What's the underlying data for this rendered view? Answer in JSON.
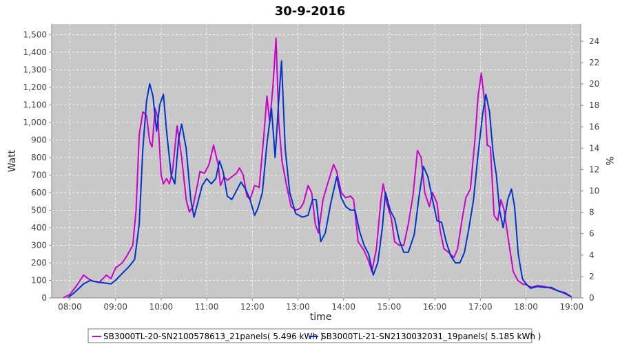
{
  "colors": {
    "plot_bg": "#c8c8c8",
    "grid": "#ffffff",
    "series1": "#cc00cc",
    "series2": "#0033cc"
  },
  "chart_data": {
    "type": "line",
    "title": "30-9-2016",
    "xlabel": "time",
    "ylabel": "Watt",
    "y2label": "%",
    "xlim": [
      7.6,
      19.2
    ],
    "ylim": [
      0,
      1560
    ],
    "y2lim": [
      0,
      25.6
    ],
    "xticks": [
      {
        "value": 8,
        "label": "08:00"
      },
      {
        "value": 9,
        "label": "09:00"
      },
      {
        "value": 10,
        "label": "10:00"
      },
      {
        "value": 11,
        "label": "11:00"
      },
      {
        "value": 12,
        "label": "12:00"
      },
      {
        "value": 13,
        "label": "13:00"
      },
      {
        "value": 14,
        "label": "14:00"
      },
      {
        "value": 15,
        "label": "15:00"
      },
      {
        "value": 16,
        "label": "16:00"
      },
      {
        "value": 17,
        "label": "17:00"
      },
      {
        "value": 18,
        "label": "18:00"
      },
      {
        "value": 19,
        "label": "19:00"
      }
    ],
    "yticks": [
      {
        "value": 0,
        "label": "0"
      },
      {
        "value": 100,
        "label": "100"
      },
      {
        "value": 200,
        "label": "200"
      },
      {
        "value": 300,
        "label": "300"
      },
      {
        "value": 400,
        "label": "400"
      },
      {
        "value": 500,
        "label": "500"
      },
      {
        "value": 600,
        "label": "600"
      },
      {
        "value": 700,
        "label": "700"
      },
      {
        "value": 800,
        "label": "800"
      },
      {
        "value": 900,
        "label": "900"
      },
      {
        "value": 1000,
        "label": "1,000"
      },
      {
        "value": 1100,
        "label": "1,100"
      },
      {
        "value": 1200,
        "label": "1,200"
      },
      {
        "value": 1300,
        "label": "1,300"
      },
      {
        "value": 1400,
        "label": "1,400"
      },
      {
        "value": 1500,
        "label": "1,500"
      }
    ],
    "y2ticks": [
      {
        "value": 0,
        "label": "0"
      },
      {
        "value": 2,
        "label": "2"
      },
      {
        "value": 4,
        "label": "4"
      },
      {
        "value": 6,
        "label": "6"
      },
      {
        "value": 8,
        "label": "8"
      },
      {
        "value": 10,
        "label": "10"
      },
      {
        "value": 12,
        "label": "12"
      },
      {
        "value": 14,
        "label": "14"
      },
      {
        "value": 16,
        "label": "16"
      },
      {
        "value": 18,
        "label": "18"
      },
      {
        "value": 20,
        "label": "20"
      },
      {
        "value": 22,
        "label": "22"
      },
      {
        "value": 24,
        "label": "24"
      }
    ],
    "grid": true,
    "legend_position": "bottom",
    "series": [
      {
        "name": "SB3000TL-20-SN2100578613_21panels( 5.496 kWh )",
        "color": "#cc00cc",
        "points": [
          [
            7.85,
            0
          ],
          [
            8.0,
            20
          ],
          [
            8.15,
            70
          ],
          [
            8.3,
            130
          ],
          [
            8.4,
            110
          ],
          [
            8.5,
            95
          ],
          [
            8.65,
            90
          ],
          [
            8.8,
            130
          ],
          [
            8.9,
            110
          ],
          [
            9.0,
            170
          ],
          [
            9.15,
            200
          ],
          [
            9.25,
            240
          ],
          [
            9.38,
            300
          ],
          [
            9.45,
            500
          ],
          [
            9.52,
            930
          ],
          [
            9.6,
            1060
          ],
          [
            9.68,
            1040
          ],
          [
            9.75,
            890
          ],
          [
            9.8,
            860
          ],
          [
            9.87,
            1080
          ],
          [
            9.93,
            1020
          ],
          [
            10.0,
            700
          ],
          [
            10.05,
            650
          ],
          [
            10.12,
            680
          ],
          [
            10.18,
            650
          ],
          [
            10.25,
            720
          ],
          [
            10.35,
            980
          ],
          [
            10.45,
            800
          ],
          [
            10.55,
            560
          ],
          [
            10.62,
            490
          ],
          [
            10.7,
            520
          ],
          [
            10.8,
            650
          ],
          [
            10.85,
            720
          ],
          [
            10.95,
            710
          ],
          [
            11.05,
            760
          ],
          [
            11.15,
            870
          ],
          [
            11.25,
            760
          ],
          [
            11.3,
            640
          ],
          [
            11.38,
            690
          ],
          [
            11.45,
            670
          ],
          [
            11.55,
            690
          ],
          [
            11.65,
            710
          ],
          [
            11.72,
            740
          ],
          [
            11.8,
            700
          ],
          [
            11.88,
            580
          ],
          [
            11.95,
            560
          ],
          [
            12.05,
            640
          ],
          [
            12.15,
            630
          ],
          [
            12.25,
            920
          ],
          [
            12.32,
            1150
          ],
          [
            12.38,
            1000
          ],
          [
            12.45,
            1200
          ],
          [
            12.52,
            1480
          ],
          [
            12.58,
            1000
          ],
          [
            12.65,
            780
          ],
          [
            12.75,
            640
          ],
          [
            12.85,
            520
          ],
          [
            12.95,
            500
          ],
          [
            13.05,
            510
          ],
          [
            13.12,
            540
          ],
          [
            13.22,
            640
          ],
          [
            13.3,
            600
          ],
          [
            13.38,
            420
          ],
          [
            13.45,
            370
          ],
          [
            13.55,
            560
          ],
          [
            13.65,
            650
          ],
          [
            13.78,
            760
          ],
          [
            13.85,
            720
          ],
          [
            13.95,
            600
          ],
          [
            14.05,
            570
          ],
          [
            14.15,
            580
          ],
          [
            14.22,
            560
          ],
          [
            14.32,
            320
          ],
          [
            14.45,
            270
          ],
          [
            14.55,
            210
          ],
          [
            14.62,
            150
          ],
          [
            14.72,
            280
          ],
          [
            14.82,
            560
          ],
          [
            14.87,
            650
          ],
          [
            14.95,
            540
          ],
          [
            15.05,
            450
          ],
          [
            15.12,
            320
          ],
          [
            15.22,
            300
          ],
          [
            15.32,
            300
          ],
          [
            15.42,
            420
          ],
          [
            15.52,
            580
          ],
          [
            15.62,
            840
          ],
          [
            15.7,
            800
          ],
          [
            15.78,
            600
          ],
          [
            15.88,
            520
          ],
          [
            15.95,
            600
          ],
          [
            16.05,
            540
          ],
          [
            16.12,
            380
          ],
          [
            16.2,
            280
          ],
          [
            16.3,
            260
          ],
          [
            16.42,
            230
          ],
          [
            16.5,
            280
          ],
          [
            16.6,
            450
          ],
          [
            16.68,
            570
          ],
          [
            16.78,
            620
          ],
          [
            16.88,
            900
          ],
          [
            16.95,
            1150
          ],
          [
            17.02,
            1280
          ],
          [
            17.1,
            1100
          ],
          [
            17.15,
            870
          ],
          [
            17.22,
            860
          ],
          [
            17.3,
            470
          ],
          [
            17.38,
            440
          ],
          [
            17.45,
            560
          ],
          [
            17.52,
            500
          ],
          [
            17.62,
            320
          ],
          [
            17.72,
            150
          ],
          [
            17.82,
            100
          ],
          [
            17.92,
            80
          ],
          [
            18.0,
            75
          ],
          [
            18.12,
            60
          ],
          [
            18.25,
            70
          ],
          [
            18.4,
            65
          ],
          [
            18.55,
            55
          ],
          [
            18.7,
            40
          ],
          [
            18.85,
            25
          ],
          [
            19.0,
            5
          ]
        ]
      },
      {
        "name": "SB3000TL-21-SN2130032031_19panels( 5.185 kWh )",
        "color": "#0033cc",
        "points": [
          [
            7.95,
            0
          ],
          [
            8.1,
            30
          ],
          [
            8.3,
            80
          ],
          [
            8.45,
            100
          ],
          [
            8.6,
            90
          ],
          [
            8.75,
            85
          ],
          [
            8.9,
            80
          ],
          [
            9.0,
            100
          ],
          [
            9.15,
            140
          ],
          [
            9.3,
            180
          ],
          [
            9.42,
            220
          ],
          [
            9.52,
            420
          ],
          [
            9.6,
            850
          ],
          [
            9.68,
            1120
          ],
          [
            9.75,
            1220
          ],
          [
            9.82,
            1150
          ],
          [
            9.9,
            950
          ],
          [
            9.97,
            1100
          ],
          [
            10.05,
            1160
          ],
          [
            10.12,
            950
          ],
          [
            10.22,
            700
          ],
          [
            10.3,
            650
          ],
          [
            10.38,
            900
          ],
          [
            10.45,
            990
          ],
          [
            10.55,
            850
          ],
          [
            10.65,
            560
          ],
          [
            10.72,
            460
          ],
          [
            10.8,
            540
          ],
          [
            10.9,
            640
          ],
          [
            11.0,
            680
          ],
          [
            11.1,
            650
          ],
          [
            11.2,
            680
          ],
          [
            11.28,
            780
          ],
          [
            11.36,
            720
          ],
          [
            11.45,
            580
          ],
          [
            11.55,
            560
          ],
          [
            11.65,
            610
          ],
          [
            11.75,
            660
          ],
          [
            11.85,
            620
          ],
          [
            11.95,
            560
          ],
          [
            12.05,
            470
          ],
          [
            12.12,
            510
          ],
          [
            12.22,
            600
          ],
          [
            12.32,
            880
          ],
          [
            12.42,
            1080
          ],
          [
            12.5,
            800
          ],
          [
            12.58,
            1130
          ],
          [
            12.64,
            1350
          ],
          [
            12.72,
            850
          ],
          [
            12.82,
            600
          ],
          [
            12.95,
            480
          ],
          [
            13.1,
            460
          ],
          [
            13.22,
            470
          ],
          [
            13.32,
            560
          ],
          [
            13.4,
            560
          ],
          [
            13.5,
            320
          ],
          [
            13.6,
            370
          ],
          [
            13.72,
            540
          ],
          [
            13.85,
            690
          ],
          [
            13.95,
            570
          ],
          [
            14.05,
            520
          ],
          [
            14.15,
            500
          ],
          [
            14.25,
            500
          ],
          [
            14.35,
            380
          ],
          [
            14.45,
            300
          ],
          [
            14.55,
            250
          ],
          [
            14.65,
            130
          ],
          [
            14.75,
            200
          ],
          [
            14.85,
            400
          ],
          [
            14.92,
            600
          ],
          [
            15.02,
            500
          ],
          [
            15.12,
            450
          ],
          [
            15.22,
            330
          ],
          [
            15.32,
            260
          ],
          [
            15.42,
            260
          ],
          [
            15.55,
            360
          ],
          [
            15.65,
            570
          ],
          [
            15.75,
            750
          ],
          [
            15.85,
            690
          ],
          [
            15.95,
            560
          ],
          [
            16.05,
            440
          ],
          [
            16.15,
            430
          ],
          [
            16.25,
            320
          ],
          [
            16.35,
            240
          ],
          [
            16.45,
            200
          ],
          [
            16.55,
            200
          ],
          [
            16.65,
            260
          ],
          [
            16.75,
            400
          ],
          [
            16.85,
            560
          ],
          [
            16.95,
            820
          ],
          [
            17.05,
            1050
          ],
          [
            17.12,
            1160
          ],
          [
            17.2,
            1060
          ],
          [
            17.28,
            820
          ],
          [
            17.35,
            700
          ],
          [
            17.42,
            500
          ],
          [
            17.5,
            400
          ],
          [
            17.6,
            560
          ],
          [
            17.68,
            620
          ],
          [
            17.75,
            520
          ],
          [
            17.83,
            250
          ],
          [
            17.92,
            110
          ],
          [
            18.0,
            80
          ],
          [
            18.1,
            55
          ],
          [
            18.25,
            65
          ],
          [
            18.4,
            60
          ],
          [
            18.55,
            60
          ],
          [
            18.7,
            40
          ],
          [
            18.85,
            30
          ],
          [
            19.0,
            5
          ]
        ]
      }
    ]
  }
}
